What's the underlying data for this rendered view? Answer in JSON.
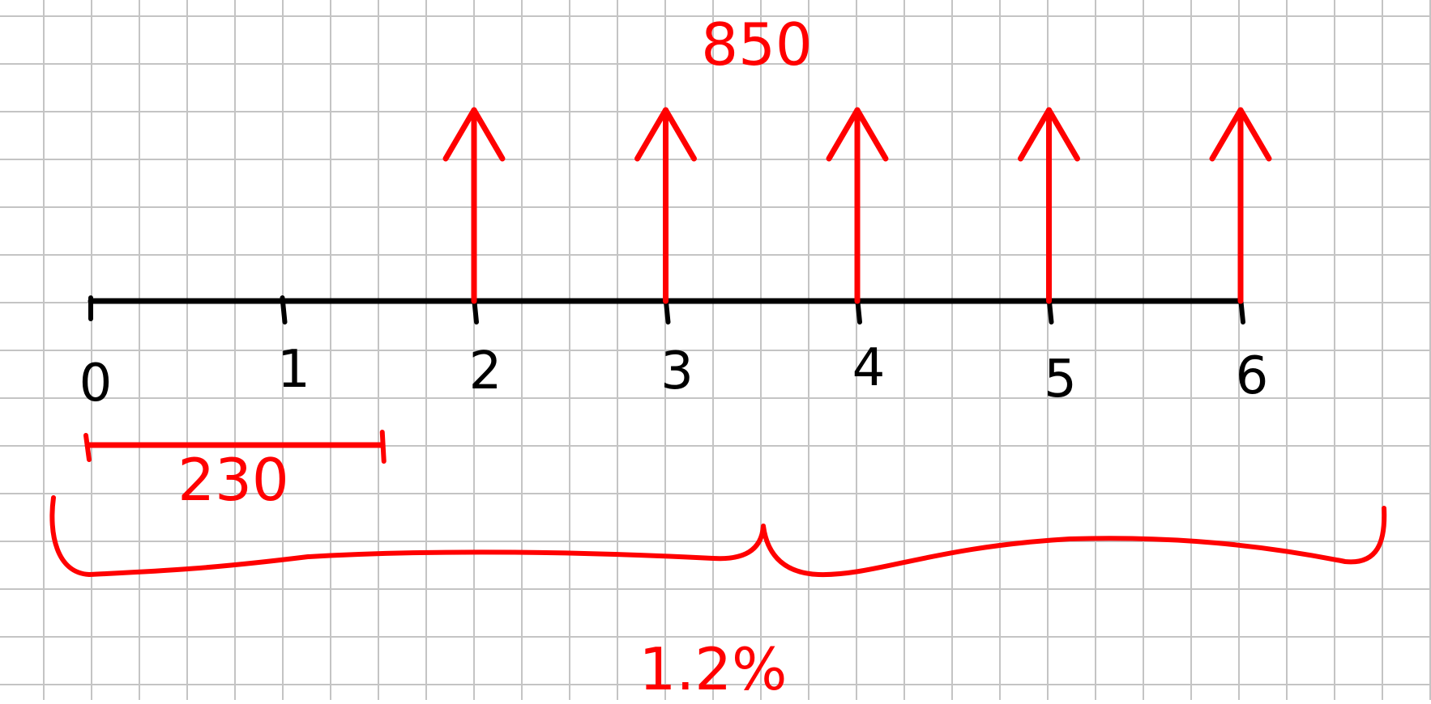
{
  "colors": {
    "grid": "#c4c4c4",
    "ink": "#000000",
    "accent": "#ff0000",
    "background": "#ffffff"
  },
  "timeline": {
    "periods": [
      "0",
      "1",
      "2",
      "3",
      "4",
      "5",
      "6"
    ]
  },
  "cash_flows": {
    "amount_label": "850",
    "arrow_periods": [
      2,
      3,
      4,
      5,
      6
    ]
  },
  "outflow": {
    "amount_label": "230",
    "start_period": 0,
    "end_period": 1.5
  },
  "rate": {
    "label": "1.2%"
  }
}
